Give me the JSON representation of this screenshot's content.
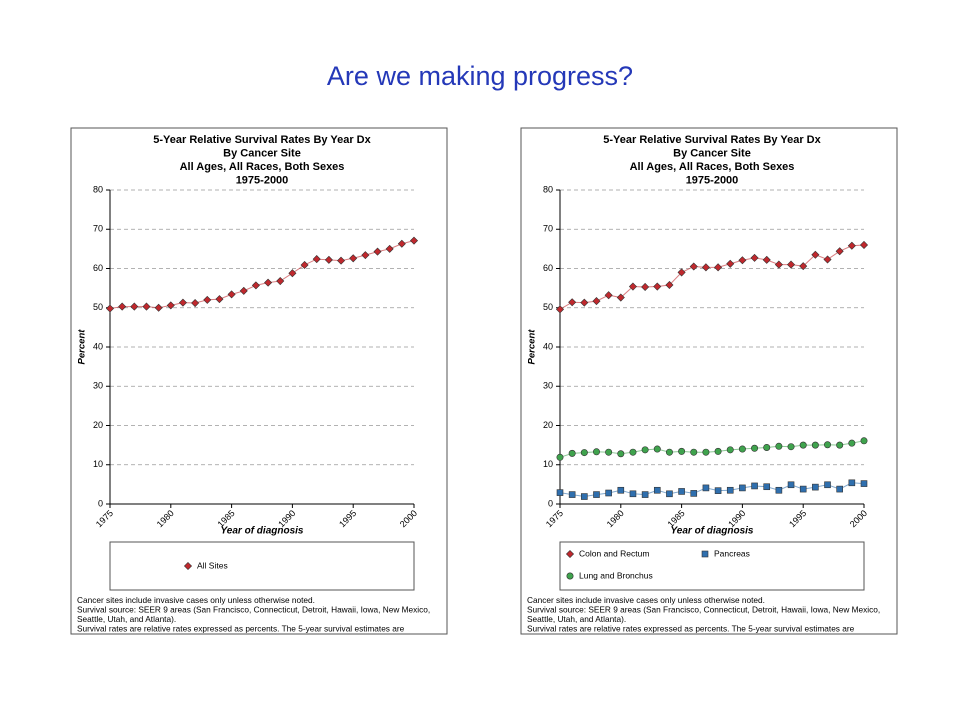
{
  "slide": {
    "title": "Are we making progress?"
  },
  "chart_data": [
    {
      "type": "line",
      "title": [
        "5-Year Relative Survival Rates By Year Dx",
        "By Cancer Site",
        "All Ages, All Races, Both Sexes",
        "1975-2000"
      ],
      "y_label": "Percent",
      "x_label": "Year of diagnosis",
      "x": [
        1975,
        1976,
        1977,
        1978,
        1979,
        1980,
        1981,
        1982,
        1983,
        1984,
        1985,
        1986,
        1987,
        1988,
        1989,
        1990,
        1991,
        1992,
        1993,
        1994,
        1995,
        1996,
        1997,
        1998,
        1999,
        2000
      ],
      "xlim": [
        1975,
        2000
      ],
      "xticks": [
        1975,
        1980,
        1985,
        1990,
        1995,
        2000
      ],
      "ylim": [
        0,
        80
      ],
      "yticks": [
        0,
        10,
        20,
        30,
        40,
        50,
        60,
        70,
        80
      ],
      "grid": true,
      "series": [
        {
          "name": "All Sites",
          "color": "#c0282d",
          "marker": "diamond",
          "values": [
            49.8,
            50.3,
            50.3,
            50.3,
            50.0,
            50.6,
            51.3,
            51.2,
            52.0,
            52.2,
            53.4,
            54.3,
            55.7,
            56.4,
            56.8,
            58.8,
            60.9,
            62.4,
            62.2,
            62.0,
            62.6,
            63.4,
            64.3,
            65.0,
            66.3,
            67.1
          ]
        }
      ],
      "footnote": [
        "Cancer sites include invasive cases only unless otherwise noted.",
        "Survival source: SEER 9 areas (San Francisco, Connecticut, Detroit, Hawaii, Iowa, New Mexico,",
        "Seattle, Utah, and Atlanta).",
        "Survival rates are relative rates expressed as percents. The 5-year survival estimates are"
      ]
    },
    {
      "type": "line",
      "title": [
        "5-Year Relative Survival Rates By Year Dx",
        "By Cancer Site",
        "All Ages, All Races, Both Sexes",
        "1975-2000"
      ],
      "y_label": "Percent",
      "x_label": "Year of diagnosis",
      "x": [
        1975,
        1976,
        1977,
        1978,
        1979,
        1980,
        1981,
        1982,
        1983,
        1984,
        1985,
        1986,
        1987,
        1988,
        1989,
        1990,
        1991,
        1992,
        1993,
        1994,
        1995,
        1996,
        1997,
        1998,
        1999,
        2000
      ],
      "xlim": [
        1975,
        2000
      ],
      "xticks": [
        1975,
        1980,
        1985,
        1990,
        1995,
        2000
      ],
      "ylim": [
        0,
        80
      ],
      "yticks": [
        0,
        10,
        20,
        30,
        40,
        50,
        60,
        70,
        80
      ],
      "grid": true,
      "series": [
        {
          "name": "Colon and Rectum",
          "color": "#c0282d",
          "marker": "diamond",
          "values": [
            49.6,
            51.4,
            51.3,
            51.7,
            53.2,
            52.6,
            55.4,
            55.3,
            55.4,
            55.8,
            59.0,
            60.5,
            60.3,
            60.3,
            61.2,
            62.1,
            62.7,
            62.2,
            61.0,
            61.0,
            60.6,
            63.5,
            62.3,
            64.4,
            65.8,
            66.0
          ]
        },
        {
          "name": "Lung and Bronchus",
          "color": "#3fa34d",
          "marker": "circle",
          "values": [
            11.9,
            12.9,
            13.1,
            13.3,
            13.2,
            12.8,
            13.2,
            13.8,
            14.0,
            13.2,
            13.4,
            13.2,
            13.2,
            13.4,
            13.8,
            14.0,
            14.2,
            14.4,
            14.7,
            14.6,
            15.0,
            15.0,
            15.1,
            15.0,
            15.5,
            16.1
          ]
        },
        {
          "name": "Pancreas",
          "color": "#2f6fae",
          "marker": "square",
          "values": [
            2.9,
            2.4,
            1.9,
            2.4,
            2.8,
            3.5,
            2.6,
            2.4,
            3.5,
            2.6,
            3.2,
            2.7,
            4.1,
            3.4,
            3.5,
            4.1,
            4.6,
            4.4,
            3.5,
            4.9,
            3.8,
            4.3,
            4.9,
            3.8,
            5.4,
            5.2
          ]
        }
      ],
      "footnote": [
        "Cancer sites include invasive cases only unless otherwise noted.",
        "Survival source: SEER 9 areas (San Francisco, Connecticut, Detroit, Hawaii, Iowa, New Mexico,",
        "Seattle, Utah, and Atlanta).",
        "Survival rates are relative rates expressed as percents. The 5-year survival estimates are"
      ]
    }
  ]
}
